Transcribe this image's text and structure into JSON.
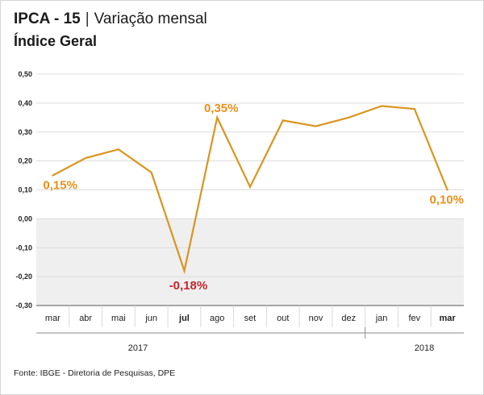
{
  "header": {
    "title_bold": "IPCA - 15",
    "title_separator": "|",
    "title_rest": "Variação mensal",
    "subtitle": "Índice Geral"
  },
  "chart_data": {
    "type": "line",
    "categories": [
      "mar",
      "abr",
      "mai",
      "jun",
      "jul",
      "ago",
      "set",
      "out",
      "nov",
      "dez",
      "jan",
      "fev",
      "mar"
    ],
    "series": [
      {
        "values": [
          0.15,
          0.21,
          0.24,
          0.16,
          -0.18,
          0.35,
          0.11,
          0.34,
          0.32,
          0.35,
          0.39,
          0.38,
          0.1
        ]
      }
    ],
    "ylim": [
      -0.3,
      0.5
    ],
    "yticks": [
      0.5,
      0.4,
      0.3,
      0.2,
      0.1,
      0,
      -0.1,
      -0.2,
      -0.3
    ],
    "ytick_labels": [
      "0,50",
      "0,40",
      "0,30",
      "0,20",
      "0,10",
      "0,00",
      "-0,10",
      "-0,20",
      "-0,30"
    ],
    "grid": true,
    "negative_region_shaded": true,
    "year_groups": [
      {
        "label": "2017",
        "first": 0,
        "last": 9
      },
      {
        "label": "2018",
        "first": 10,
        "last": 12
      }
    ],
    "data_labels": [
      {
        "index": 0,
        "text": "0,15%",
        "placement": "below",
        "color": "#e8901c"
      },
      {
        "index": 4,
        "text": "-0,18%",
        "placement": "below",
        "color": "#c1272d"
      },
      {
        "index": 5,
        "text": "0,35%",
        "placement": "above",
        "color": "#e8901c"
      },
      {
        "index": 12,
        "text": "0,10%",
        "placement": "below",
        "color": "#e8901c"
      }
    ],
    "highlighted_categories": [
      {
        "index": 4,
        "color": "#c1272d"
      },
      {
        "index": 12,
        "color": "#e8901c"
      }
    ],
    "colors": {
      "line": "#d9951f",
      "negative_area": "#efefef",
      "grid": "#dcdcdc",
      "axis": "#555555"
    }
  },
  "footer": {
    "source": "Fonte: IBGE - Diretoria de Pesquisas, DPE"
  }
}
